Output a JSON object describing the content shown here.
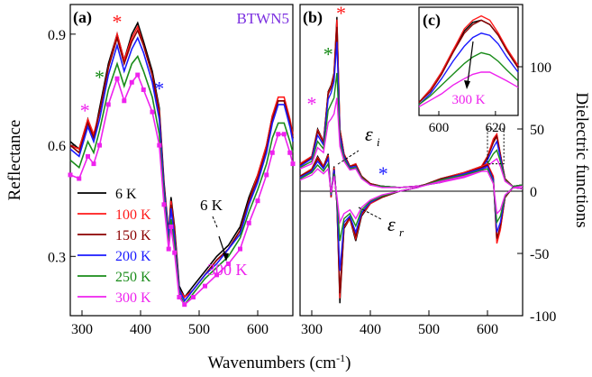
{
  "figure": {
    "x_axis_label": "Wavenumbers (cm",
    "x_axis_label_sup": "-1",
    "x_axis_label_close": ")"
  },
  "chart_data": [
    {
      "panel": "(a)",
      "type": "line",
      "sample_label": "BTWN5",
      "xlabel": "Wavenumbers (cm-1)",
      "ylabel": "Reflectance",
      "xlim": [
        280,
        660
      ],
      "ylim": [
        0.14,
        0.98
      ],
      "x_ticks": [
        "300",
        "400",
        "500",
        "600"
      ],
      "y_ticks": [
        "0.3",
        "0.6",
        "0.9"
      ],
      "x": [
        280,
        295,
        310,
        320,
        330,
        345,
        360,
        372,
        385,
        395,
        405,
        420,
        432,
        440,
        448,
        452,
        458,
        466,
        475,
        490,
        510,
        530,
        550,
        570,
        585,
        600,
        615,
        625,
        635,
        645,
        655,
        660
      ],
      "series": [
        {
          "name": "6 K",
          "color": "#000000",
          "values": [
            0.61,
            0.59,
            0.67,
            0.62,
            0.7,
            0.82,
            0.9,
            0.83,
            0.9,
            0.93,
            0.88,
            0.8,
            0.7,
            0.5,
            0.36,
            0.46,
            0.38,
            0.22,
            0.19,
            0.22,
            0.26,
            0.3,
            0.33,
            0.38,
            0.46,
            0.52,
            0.6,
            0.68,
            0.72,
            0.72,
            0.66,
            0.62
          ]
        },
        {
          "name": "100 K",
          "color": "#ff1a1a",
          "values": [
            0.6,
            0.59,
            0.67,
            0.63,
            0.69,
            0.81,
            0.9,
            0.83,
            0.89,
            0.92,
            0.87,
            0.79,
            0.69,
            0.49,
            0.35,
            0.45,
            0.37,
            0.21,
            0.19,
            0.21,
            0.25,
            0.29,
            0.32,
            0.37,
            0.45,
            0.52,
            0.6,
            0.68,
            0.73,
            0.73,
            0.67,
            0.63
          ]
        },
        {
          "name": "150 K",
          "color": "#8b0000",
          "values": [
            0.6,
            0.58,
            0.66,
            0.62,
            0.69,
            0.81,
            0.89,
            0.82,
            0.88,
            0.91,
            0.87,
            0.79,
            0.68,
            0.49,
            0.35,
            0.44,
            0.36,
            0.21,
            0.18,
            0.21,
            0.25,
            0.29,
            0.32,
            0.37,
            0.45,
            0.51,
            0.59,
            0.67,
            0.72,
            0.72,
            0.66,
            0.62
          ]
        },
        {
          "name": "200 K",
          "color": "#1a1aff",
          "values": [
            0.59,
            0.57,
            0.65,
            0.61,
            0.67,
            0.79,
            0.87,
            0.8,
            0.86,
            0.89,
            0.85,
            0.77,
            0.67,
            0.48,
            0.35,
            0.43,
            0.35,
            0.21,
            0.18,
            0.21,
            0.25,
            0.28,
            0.32,
            0.36,
            0.44,
            0.5,
            0.58,
            0.66,
            0.71,
            0.71,
            0.65,
            0.61
          ]
        },
        {
          "name": "250 K",
          "color": "#1a8c1a",
          "values": [
            0.56,
            0.54,
            0.61,
            0.58,
            0.64,
            0.75,
            0.82,
            0.76,
            0.82,
            0.84,
            0.8,
            0.73,
            0.63,
            0.46,
            0.33,
            0.4,
            0.33,
            0.2,
            0.17,
            0.2,
            0.24,
            0.27,
            0.3,
            0.35,
            0.42,
            0.48,
            0.55,
            0.62,
            0.66,
            0.66,
            0.61,
            0.58
          ]
        },
        {
          "name": "300 K",
          "color": "#ee22ee",
          "values": [
            0.52,
            0.51,
            0.57,
            0.55,
            0.6,
            0.71,
            0.78,
            0.72,
            0.77,
            0.79,
            0.75,
            0.69,
            0.6,
            0.44,
            0.32,
            0.38,
            0.31,
            0.19,
            0.17,
            0.19,
            0.22,
            0.25,
            0.28,
            0.32,
            0.39,
            0.45,
            0.52,
            0.58,
            0.63,
            0.63,
            0.58,
            0.55
          ]
        }
      ],
      "annotations": {
        "low_temperature": "6 K",
        "high_temperature": "300 K"
      },
      "star_markers": [
        {
          "symbol": "*",
          "color": "#ff1a1a",
          "x": 360,
          "y": 0.94
        },
        {
          "symbol": "*",
          "color": "#1a8c1a",
          "x": 330,
          "y": 0.79
        },
        {
          "symbol": "*",
          "color": "#ee22ee",
          "x": 305,
          "y": 0.7
        },
        {
          "symbol": "*",
          "color": "#1a1aff",
          "x": 432,
          "y": 0.76
        }
      ],
      "grid": false,
      "legend_position": "bottom-left"
    },
    {
      "panel": "(b)",
      "type": "line",
      "ylabel": "Dielectric functions",
      "xlabel": "Wavenumbers (cm-1)",
      "xlim": [
        280,
        660
      ],
      "ylim": [
        -100,
        150
      ],
      "x_ticks": [
        "300",
        "400",
        "500",
        "600"
      ],
      "y_ticks": [
        "-100",
        "-50",
        "0",
        "50",
        "100"
      ],
      "epsilon_i_label": "ε",
      "epsilon_i_sub": "i",
      "epsilon_r_label": "ε",
      "epsilon_r_sub": "r",
      "x": [
        280,
        300,
        310,
        320,
        328,
        333,
        338,
        343,
        348,
        355,
        365,
        375,
        385,
        400,
        420,
        450,
        480,
        520,
        560,
        590,
        600,
        610,
        616,
        622,
        630,
        645,
        660
      ],
      "series_i": [
        {
          "name": "6 K",
          "color": "#000000",
          "values": [
            22,
            28,
            50,
            40,
            80,
            85,
            95,
            140,
            50,
            30,
            20,
            22,
            12,
            6,
            4,
            3,
            4,
            8,
            14,
            20,
            28,
            40,
            45,
            30,
            10,
            3,
            2
          ]
        },
        {
          "name": "100 K",
          "color": "#ff1a1a",
          "values": [
            22,
            28,
            49,
            40,
            79,
            84,
            94,
            138,
            50,
            30,
            20,
            22,
            12,
            6,
            4,
            3,
            4,
            8,
            14,
            20,
            28,
            42,
            46,
            30,
            10,
            3,
            2
          ]
        },
        {
          "name": "150 K",
          "color": "#8b0000",
          "values": [
            21,
            27,
            48,
            39,
            78,
            83,
            92,
            132,
            48,
            29,
            20,
            21,
            12,
            6,
            4,
            3,
            4,
            8,
            13,
            19,
            27,
            39,
            44,
            29,
            10,
            3,
            2
          ]
        },
        {
          "name": "200 K",
          "color": "#1a1aff",
          "values": [
            20,
            26,
            45,
            37,
            74,
            79,
            88,
            120,
            45,
            28,
            19,
            20,
            11,
            5,
            4,
            3,
            4,
            7,
            13,
            18,
            25,
            35,
            40,
            27,
            9,
            3,
            2
          ]
        },
        {
          "name": "250 K",
          "color": "#1a8c1a",
          "values": [
            19,
            24,
            40,
            34,
            65,
            70,
            75,
            95,
            40,
            26,
            18,
            19,
            11,
            5,
            4,
            3,
            4,
            7,
            12,
            17,
            22,
            30,
            33,
            24,
            9,
            3,
            2
          ]
        },
        {
          "name": "300 K",
          "color": "#ee22ee",
          "values": [
            18,
            22,
            35,
            31,
            55,
            58,
            62,
            75,
            36,
            24,
            17,
            18,
            10,
            5,
            3,
            3,
            4,
            7,
            11,
            16,
            20,
            24,
            26,
            20,
            8,
            3,
            2
          ]
        }
      ],
      "series_r": [
        {
          "name": "6 K",
          "color": "#000000",
          "values": [
            12,
            18,
            28,
            20,
            30,
            -5,
            20,
            -10,
            -90,
            -30,
            -22,
            -40,
            -20,
            -10,
            -5,
            0,
            3,
            10,
            15,
            20,
            22,
            10,
            -40,
            -30,
            -5,
            4,
            5
          ]
        },
        {
          "name": "100 K",
          "color": "#ff1a1a",
          "values": [
            12,
            18,
            27,
            20,
            29,
            -5,
            19,
            -10,
            -86,
            -29,
            -22,
            -38,
            -19,
            -10,
            -5,
            0,
            3,
            10,
            15,
            20,
            22,
            12,
            -42,
            -31,
            -5,
            4,
            5
          ]
        },
        {
          "name": "150 K",
          "color": "#8b0000",
          "values": [
            12,
            17,
            26,
            19,
            28,
            -4,
            18,
            -9,
            -82,
            -28,
            -21,
            -36,
            -18,
            -9,
            -5,
            0,
            3,
            10,
            14,
            19,
            21,
            10,
            -38,
            -28,
            -5,
            4,
            5
          ]
        },
        {
          "name": "200 K",
          "color": "#1a1aff",
          "values": [
            11,
            16,
            24,
            18,
            26,
            -3,
            17,
            -8,
            -64,
            -25,
            -20,
            -33,
            -17,
            -9,
            -4,
            0,
            3,
            9,
            14,
            18,
            20,
            9,
            -33,
            -25,
            -4,
            4,
            5
          ]
        },
        {
          "name": "250 K",
          "color": "#1a8c1a",
          "values": [
            10,
            15,
            21,
            16,
            22,
            -2,
            14,
            -6,
            -40,
            -22,
            -18,
            -28,
            -15,
            -8,
            -4,
            0,
            3,
            9,
            13,
            17,
            18,
            7,
            -25,
            -20,
            -4,
            4,
            5
          ]
        },
        {
          "name": "300 K",
          "color": "#ee22ee",
          "values": [
            9,
            13,
            18,
            14,
            18,
            -1,
            12,
            -4,
            -25,
            -18,
            -15,
            -22,
            -13,
            -7,
            -3,
            0,
            3,
            8,
            12,
            16,
            16,
            6,
            -18,
            -15,
            -3,
            3,
            4
          ]
        }
      ],
      "star_markers": [
        {
          "symbol": "*",
          "color": "#ff1a1a",
          "x": 350,
          "y": 145
        },
        {
          "symbol": "*",
          "color": "#1a8c1a",
          "x": 328,
          "y": 112
        },
        {
          "symbol": "*",
          "color": "#ee22ee",
          "x": 300,
          "y": 72
        },
        {
          "symbol": "*",
          "color": "#1a1aff",
          "x": 422,
          "y": 16
        }
      ],
      "grid": false
    },
    {
      "panel": "(c)",
      "type": "line",
      "inset": true,
      "xlim": [
        593,
        628
      ],
      "x_ticks": [
        "600",
        "620"
      ],
      "arrow_label": "300 K",
      "x": [
        593,
        597,
        601,
        605,
        609,
        612,
        615,
        618,
        621,
        624,
        628
      ],
      "series": [
        {
          "name": "6 K",
          "color": "#000000",
          "values": [
            6,
            12,
            20,
            30,
            39,
            43,
            44,
            42,
            37,
            30,
            22
          ]
        },
        {
          "name": "100 K",
          "color": "#ff1a1a",
          "values": [
            6,
            12,
            20,
            30,
            40,
            44,
            46,
            44,
            38,
            31,
            23
          ]
        },
        {
          "name": "150 K",
          "color": "#8b0000",
          "values": [
            6,
            11,
            19,
            29,
            38,
            42,
            44,
            42,
            37,
            30,
            22
          ]
        },
        {
          "name": "200 K",
          "color": "#1a1aff",
          "values": [
            5,
            10,
            17,
            25,
            32,
            36,
            38,
            37,
            33,
            27,
            20
          ]
        },
        {
          "name": "250 K",
          "color": "#1a8c1a",
          "values": [
            5,
            9,
            14,
            19,
            24,
            27,
            29,
            28,
            25,
            21,
            16
          ]
        },
        {
          "name": "300 K",
          "color": "#ee22ee",
          "values": [
            4,
            7,
            10,
            14,
            17,
            19,
            20,
            20,
            18,
            16,
            13
          ]
        }
      ]
    }
  ]
}
